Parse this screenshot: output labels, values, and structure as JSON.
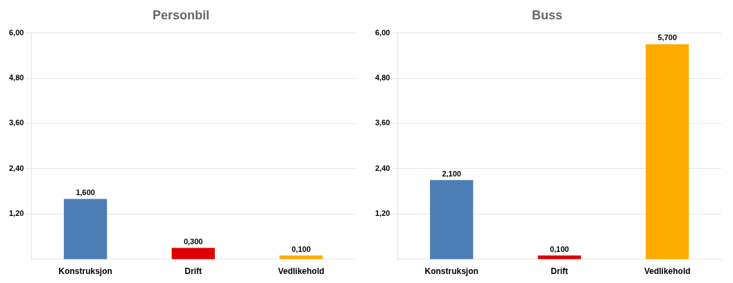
{
  "chart_data": [
    {
      "type": "bar",
      "title": "Personbil",
      "categories": [
        "Konstruksjon",
        "Drift",
        "Vedlikehold"
      ],
      "values": [
        1.6,
        0.3,
        0.1
      ],
      "value_labels": [
        "1,600",
        "0,300",
        "0,100"
      ],
      "colors": [
        "#4d7eb5",
        "#dd0000",
        "#ffaa00"
      ],
      "data_labels": true,
      "ylim": [
        0,
        6.0
      ],
      "yticks": [
        {
          "value": 1.2,
          "label": "1,20"
        },
        {
          "value": 2.4,
          "label": "2,40"
        },
        {
          "value": 3.6,
          "label": "3,60"
        },
        {
          "value": 4.8,
          "label": "4,80"
        },
        {
          "value": 6.0,
          "label": "6,00"
        }
      ],
      "grid": true
    },
    {
      "type": "bar",
      "title": "Buss",
      "categories": [
        "Konstruksjon",
        "Drift",
        "Vedlikehold"
      ],
      "values": [
        2.1,
        0.1,
        5.7
      ],
      "value_labels": [
        "2,100",
        "0,100",
        "5,700"
      ],
      "colors": [
        "#4d7eb5",
        "#dd0000",
        "#ffaa00"
      ],
      "data_labels": true,
      "ylim": [
        0,
        6.0
      ],
      "yticks": [
        {
          "value": 1.2,
          "label": "1,20"
        },
        {
          "value": 2.4,
          "label": "2,40"
        },
        {
          "value": 3.6,
          "label": "3,60"
        },
        {
          "value": 4.8,
          "label": "4,80"
        },
        {
          "value": 6.0,
          "label": "6,00"
        }
      ],
      "grid": true
    }
  ]
}
